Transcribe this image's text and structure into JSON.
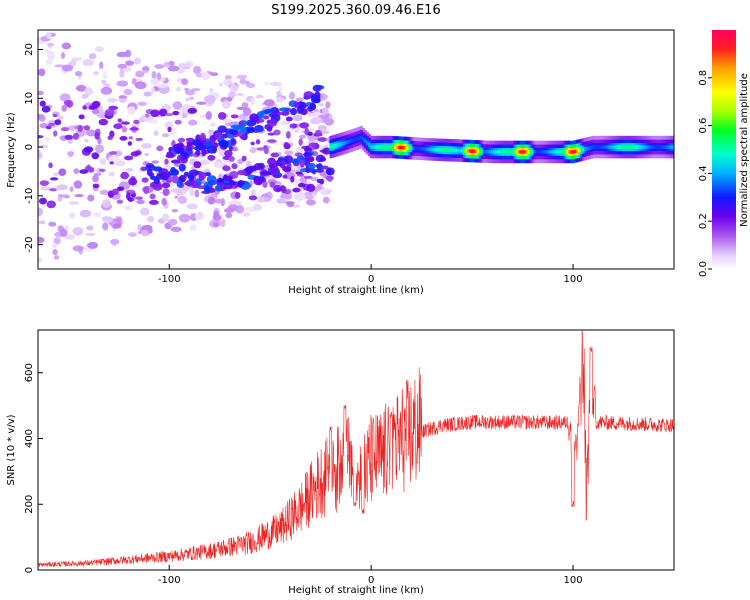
{
  "figure_title": "S199.2025.360.09.46.E16",
  "colors": {
    "snr_line": "#ee2222",
    "axis": "#000000",
    "background": "#ffffff"
  },
  "chart_data": [
    {
      "type": "heatmap",
      "title": "S199.2025.360.09.46.E16",
      "xlabel": "Height of straight line (km)",
      "ylabel": "Frequency (Hz)",
      "xlim": [
        -165,
        150
      ],
      "ylim": [
        -25,
        24
      ],
      "x_ticks": [
        -100,
        0,
        100
      ],
      "y_ticks": [
        -20,
        -10,
        0,
        10,
        20
      ],
      "colorbar": {
        "label": "Normalized spectral amplitude",
        "range": [
          0,
          1
        ],
        "ticks": [
          0.0,
          0.2,
          0.4,
          0.6,
          0.8
        ]
      },
      "features": {
        "scatter_region_x": [
          -165,
          -20
        ],
        "upper_branch": [
          [
            -100,
            -2
          ],
          [
            -80,
            1
          ],
          [
            -60,
            4
          ],
          [
            -45,
            7
          ],
          [
            -35,
            8
          ],
          [
            -25,
            11
          ]
        ],
        "lower_branch": [
          [
            -110,
            -5
          ],
          [
            -90,
            -6
          ],
          [
            -75,
            -8
          ],
          [
            -60,
            -6
          ],
          [
            -45,
            -4
          ],
          [
            -30,
            -3
          ],
          [
            -20,
            -5
          ]
        ],
        "ridge_line": [
          [
            -20,
            0
          ],
          [
            -12,
            1
          ],
          [
            -5,
            2
          ],
          [
            0,
            0
          ],
          [
            10,
            0
          ],
          [
            30,
            -0.5
          ],
          [
            60,
            -1
          ],
          [
            95,
            -1
          ],
          [
            100,
            -1
          ],
          [
            110,
            0
          ],
          [
            150,
            0
          ]
        ],
        "ridge_peak_positions": [
          15,
          50,
          75,
          100
        ],
        "ridge_peak_amplitude": 0.95
      }
    },
    {
      "type": "line",
      "title": "",
      "xlabel": "Height of straight line (km)",
      "ylabel": "SNR (10 * v/v)",
      "xlim": [
        -165,
        150
      ],
      "ylim": [
        0,
        730
      ],
      "x_ticks": [
        -100,
        0,
        100
      ],
      "y_ticks": [
        0,
        200,
        400,
        600
      ],
      "series": [
        {
          "name": "SNR",
          "envelope": [
            [
              -165,
              15
            ],
            [
              -140,
              20
            ],
            [
              -120,
              30
            ],
            [
              -100,
              40
            ],
            [
              -80,
              55
            ],
            [
              -60,
              80
            ],
            [
              -45,
              120
            ],
            [
              -35,
              180
            ],
            [
              -25,
              260
            ],
            [
              -15,
              300
            ],
            [
              -5,
              310
            ],
            [
              5,
              330
            ],
            [
              15,
              380
            ],
            [
              25,
              420
            ],
            [
              35,
              440
            ],
            [
              50,
              450
            ],
            [
              70,
              450
            ],
            [
              90,
              448
            ],
            [
              110,
              450
            ],
            [
              130,
              445
            ],
            [
              150,
              440
            ]
          ],
          "spikes": [
            [
              -20,
              430
            ],
            [
              -13,
              500
            ],
            [
              -8,
              200
            ],
            [
              -4,
              180
            ],
            [
              10,
              470
            ],
            [
              100,
              200
            ],
            [
              105,
              720
            ],
            [
              107,
              150
            ],
            [
              109,
              670
            ]
          ]
        }
      ]
    }
  ]
}
